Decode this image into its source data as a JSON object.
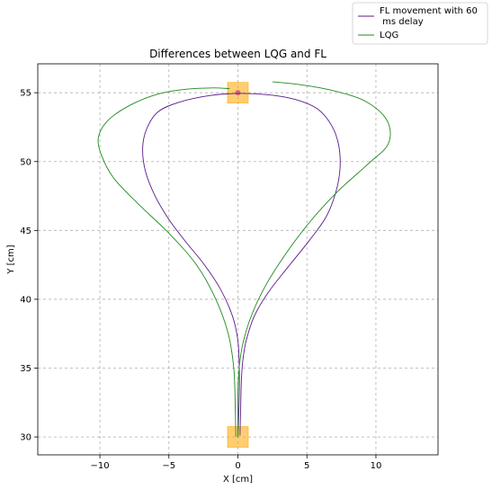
{
  "chart_data": {
    "type": "line",
    "title": "Differences between LQG and FL",
    "xlabel": "X [cm]",
    "ylabel": "Y [cm]",
    "xlim": [
      -14.5,
      14.5
    ],
    "ylim": [
      28.7,
      57.1
    ],
    "xticks": [
      -10,
      -5,
      0,
      5,
      10
    ],
    "yticks": [
      30,
      35,
      40,
      45,
      50,
      55
    ],
    "grid": true,
    "legend_position": "upper-right-outside",
    "series": [
      {
        "name": "FL movement with 60\n ms delay",
        "color": "#5b1a8a",
        "points": [
          [
            0.15,
            30.1
          ],
          [
            0.2,
            32.0
          ],
          [
            0.25,
            34.0
          ],
          [
            0.35,
            35.5
          ],
          [
            0.6,
            37.0
          ],
          [
            1.2,
            38.8
          ],
          [
            2.2,
            40.5
          ],
          [
            3.6,
            42.3
          ],
          [
            5.2,
            44.3
          ],
          [
            6.4,
            46.0
          ],
          [
            7.1,
            47.8
          ],
          [
            7.4,
            49.5
          ],
          [
            7.3,
            51.2
          ],
          [
            6.8,
            52.6
          ],
          [
            5.8,
            53.8
          ],
          [
            4.2,
            54.5
          ],
          [
            2.2,
            54.85
          ],
          [
            0.1,
            54.95
          ],
          [
            -2.0,
            54.8
          ],
          [
            -4.3,
            54.3
          ],
          [
            -5.8,
            53.6
          ],
          [
            -6.6,
            52.4
          ],
          [
            -6.9,
            51.0
          ],
          [
            -6.7,
            49.3
          ],
          [
            -6.0,
            47.5
          ],
          [
            -5.0,
            45.8
          ],
          [
            -3.8,
            44.2
          ],
          [
            -2.5,
            42.6
          ],
          [
            -1.3,
            40.8
          ],
          [
            -0.4,
            38.8
          ],
          [
            0.0,
            37.0
          ],
          [
            0.1,
            35.0
          ],
          [
            0.1,
            33.0
          ],
          [
            0.0,
            30.0
          ]
        ]
      },
      {
        "name": "LQG",
        "color": "#1f8a1f",
        "points": [
          [
            0.0,
            30.0
          ],
          [
            0.0,
            32.5
          ],
          [
            0.05,
            34.5
          ],
          [
            0.3,
            36.5
          ],
          [
            0.9,
            38.6
          ],
          [
            1.9,
            40.8
          ],
          [
            3.4,
            43.2
          ],
          [
            5.2,
            45.6
          ],
          [
            7.2,
            47.8
          ],
          [
            9.4,
            49.8
          ],
          [
            10.9,
            51.3
          ],
          [
            10.8,
            53.0
          ],
          [
            9.2,
            54.4
          ],
          [
            6.7,
            55.2
          ],
          [
            4.4,
            55.6
          ],
          [
            2.5,
            55.8
          ]
        ]
      },
      {
        "name": "LQG",
        "color": "#1f8a1f",
        "points": [
          [
            -0.15,
            30.0
          ],
          [
            -0.2,
            32.5
          ],
          [
            -0.3,
            35.0
          ],
          [
            -0.7,
            37.5
          ],
          [
            -1.6,
            40.0
          ],
          [
            -3.0,
            42.5
          ],
          [
            -5.0,
            44.8
          ],
          [
            -7.2,
            46.9
          ],
          [
            -9.0,
            48.8
          ],
          [
            -9.9,
            50.5
          ],
          [
            -10.1,
            51.8
          ],
          [
            -9.4,
            53.0
          ],
          [
            -7.8,
            54.1
          ],
          [
            -5.8,
            54.9
          ],
          [
            -3.8,
            55.25
          ],
          [
            -1.8,
            55.35
          ],
          [
            -0.6,
            55.3
          ]
        ]
      }
    ],
    "target_boxes": [
      {
        "cx": 0,
        "cy": 55,
        "color": "#ffa500"
      },
      {
        "cx": 0,
        "cy": 30,
        "color": "#ffa500"
      }
    ],
    "target_dot": {
      "x": 0,
      "y": 55,
      "color": "#cc5a6a"
    },
    "legend": [
      {
        "label": "FL movement with 60\n ms delay",
        "color": "#5b1a8a"
      },
      {
        "label": "LQG",
        "color": "#1f8a1f"
      }
    ]
  }
}
